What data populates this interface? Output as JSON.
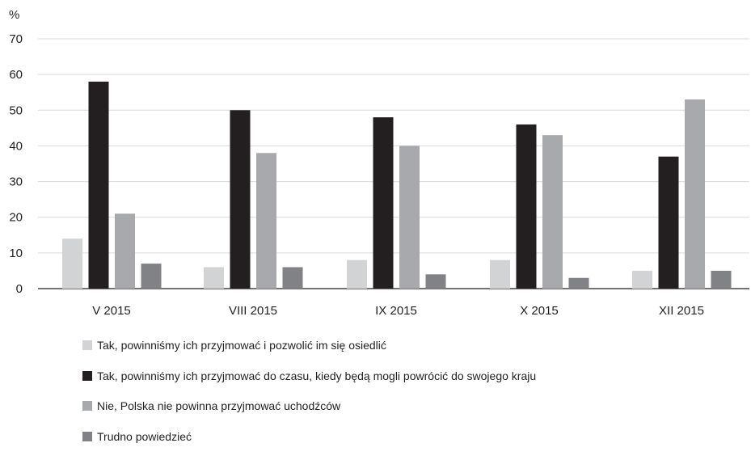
{
  "chart_data": {
    "type": "bar",
    "y_unit": "%",
    "categories": [
      "V 2015",
      "VIII 2015",
      "IX 2015",
      "X 2015",
      "XII 2015"
    ],
    "ylim": [
      0,
      70
    ],
    "yticks": [
      0,
      10,
      20,
      30,
      40,
      50,
      60,
      70
    ],
    "grid": true,
    "legend_position": "bottom-left",
    "series": [
      {
        "name": "Tak, powinniśmy ich przyjmować i pozwolić im się osiedlić",
        "color": "#d1d3d4",
        "values": [
          14,
          6,
          8,
          8,
          5
        ]
      },
      {
        "name": "Tak, powinniśmy ich przyjmować do czasu, kiedy będą mogli powrócić do swojego kraju",
        "color": "#231f20",
        "values": [
          58,
          50,
          48,
          46,
          37
        ]
      },
      {
        "name": "Nie, Polska nie powinna przyjmować uchodźców",
        "color": "#a7a9ac",
        "values": [
          21,
          38,
          40,
          43,
          53
        ]
      },
      {
        "name": "Trudno powiedzieć",
        "color": "#808285",
        "values": [
          7,
          6,
          4,
          3,
          5
        ]
      }
    ]
  }
}
